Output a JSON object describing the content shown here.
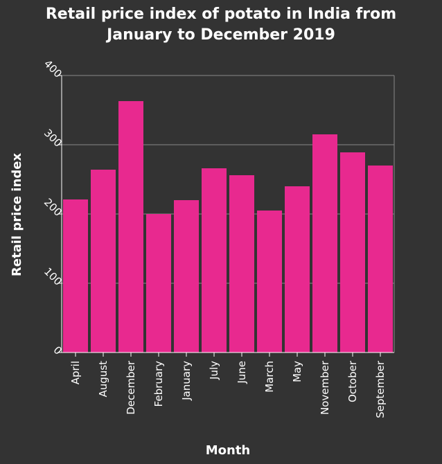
{
  "chart_data": {
    "type": "bar",
    "title_lines": [
      "Retail price index of potato in India from",
      "January to December 2019"
    ],
    "xlabel": "Month",
    "ylabel": "Retail price index",
    "categories": [
      "April",
      "August",
      "December",
      "February",
      "January",
      "July",
      "June",
      "March",
      "May",
      "November",
      "October",
      "September"
    ],
    "values": [
      221,
      264,
      363,
      200,
      220,
      266,
      256,
      205,
      240,
      315,
      289,
      270
    ],
    "ylim": [
      0,
      400
    ],
    "yticks": [
      "0",
      "100",
      "200",
      "300",
      "400"
    ],
    "grid": true,
    "bar_color": "#e8298f",
    "background_color": "#333333",
    "grid_color": "#8a8a8a"
  }
}
